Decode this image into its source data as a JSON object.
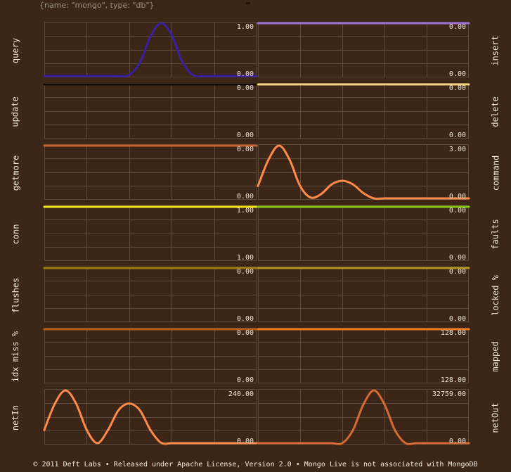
{
  "header": {
    "text": "{name: \"mongo\", type: \"db\"}"
  },
  "footer": {
    "text": "© 2011 Deft Labs • Released under Apache License, Version 2.0 • Mongo Live is not associated with MongoDB"
  },
  "colors": {
    "background": "#3b2617",
    "grid": "#5c4a3c",
    "text": "#ece4d8"
  },
  "charts": [
    {
      "name": "query",
      "type": "line",
      "color": "#3a1fa0",
      "max_label": "1.00",
      "min_label": "0.00",
      "x": [
        0,
        1,
        2,
        3,
        4,
        5,
        6,
        7,
        8,
        9,
        10,
        11,
        12,
        13,
        14,
        15,
        16,
        17,
        18,
        19,
        20
      ],
      "y": [
        0,
        0,
        0,
        0,
        0,
        0,
        0,
        0,
        0.02,
        0.25,
        0.75,
        1,
        0.78,
        0.27,
        0.02,
        0,
        0,
        0,
        0,
        0,
        0
      ],
      "ylim": [
        0,
        1
      ]
    },
    {
      "name": "insert",
      "type": "line",
      "color": "#9c6fd8",
      "max_label": "0.00",
      "min_label": "0.00",
      "x": [
        0,
        20
      ],
      "y": [
        1,
        1
      ],
      "ylim": [
        0,
        1
      ]
    },
    {
      "name": "update",
      "type": "line",
      "color": "#150906",
      "max_label": "0.00",
      "min_label": "0.00",
      "x": [
        0,
        20
      ],
      "y": [
        1,
        1
      ],
      "ylim": [
        0,
        1
      ]
    },
    {
      "name": "delete",
      "type": "line",
      "color": "#f1d27a",
      "max_label": "0.00",
      "min_label": "0.00",
      "x": [
        0,
        20
      ],
      "y": [
        1,
        1
      ],
      "ylim": [
        0,
        1
      ]
    },
    {
      "name": "getmore",
      "type": "line",
      "color": "#c8602f",
      "max_label": "0.00",
      "min_label": "0.00",
      "x": [
        0,
        20
      ],
      "y": [
        1,
        1
      ],
      "ylim": [
        0,
        1
      ]
    },
    {
      "name": "command",
      "type": "line",
      "color": "#ff8a4a",
      "max_label": "3.00",
      "min_label": "0.00",
      "x": [
        0,
        1,
        2,
        3,
        4,
        5,
        6,
        7,
        8,
        9,
        10,
        11,
        12,
        13,
        14,
        15,
        16,
        17,
        18,
        19,
        20
      ],
      "y": [
        0.7,
        2.2,
        3.0,
        2.2,
        0.7,
        0.05,
        0.25,
        0.8,
        1.0,
        0.8,
        0.3,
        0,
        0,
        0,
        0,
        0,
        0,
        0,
        0,
        0,
        0
      ],
      "ylim": [
        0,
        3
      ]
    },
    {
      "name": "conn",
      "type": "line",
      "color": "#f2e21a",
      "max_label": "1.00",
      "min_label": "1.00",
      "x": [
        0,
        20
      ],
      "y": [
        1,
        1
      ],
      "ylim": [
        0,
        1
      ]
    },
    {
      "name": "faults",
      "type": "line",
      "color": "#88c61a",
      "max_label": "0.00",
      "min_label": "0.00",
      "x": [
        0,
        20
      ],
      "y": [
        1,
        1
      ],
      "ylim": [
        0,
        1
      ]
    },
    {
      "name": "flushes",
      "type": "line",
      "color": "#9a7c10",
      "max_label": "0.00",
      "min_label": "0.00",
      "x": [
        0,
        20
      ],
      "y": [
        1,
        1
      ],
      "ylim": [
        0,
        1
      ]
    },
    {
      "name": "locked %",
      "type": "line",
      "color": "#b0961e",
      "max_label": "0.00",
      "min_label": "0.00",
      "x": [
        0,
        20
      ],
      "y": [
        1,
        1
      ],
      "ylim": [
        0,
        1
      ]
    },
    {
      "name": "idx miss %",
      "type": "line",
      "color": "#b85d18",
      "max_label": "0.00",
      "min_label": "0.00",
      "x": [
        0,
        20
      ],
      "y": [
        1,
        1
      ],
      "ylim": [
        0,
        1
      ]
    },
    {
      "name": "mapped",
      "type": "line",
      "color": "#ee7a1e",
      "max_label": "128.00",
      "min_label": "128.00",
      "x": [
        0,
        20
      ],
      "y": [
        1,
        1
      ],
      "ylim": [
        0,
        1
      ]
    },
    {
      "name": "netIn",
      "type": "line",
      "color": "#ff8a4a",
      "max_label": "240.00",
      "min_label": "0.00",
      "x": [
        0,
        1,
        2,
        3,
        4,
        5,
        6,
        7,
        8,
        9,
        10,
        11,
        12,
        13,
        14,
        15,
        16,
        17,
        18,
        19,
        20
      ],
      "y": [
        60,
        180,
        240,
        180,
        60,
        0,
        60,
        150,
        180,
        150,
        60,
        2,
        0,
        0,
        0,
        0,
        0,
        0,
        0,
        0,
        0
      ],
      "ylim": [
        0,
        240
      ]
    },
    {
      "name": "netOut",
      "type": "line",
      "color": "#d66a33",
      "max_label": "32759.00",
      "min_label": "0.00",
      "x": [
        0,
        1,
        2,
        3,
        4,
        5,
        6,
        7,
        8,
        9,
        10,
        11,
        12,
        13,
        14,
        15,
        16,
        17,
        18,
        19,
        20
      ],
      "y": [
        0,
        0,
        0,
        0,
        0,
        0,
        0,
        0,
        0,
        8000,
        24000,
        32759,
        24000,
        8000,
        0,
        0,
        0,
        0,
        0,
        0,
        0
      ],
      "ylim": [
        0,
        32759
      ]
    }
  ]
}
